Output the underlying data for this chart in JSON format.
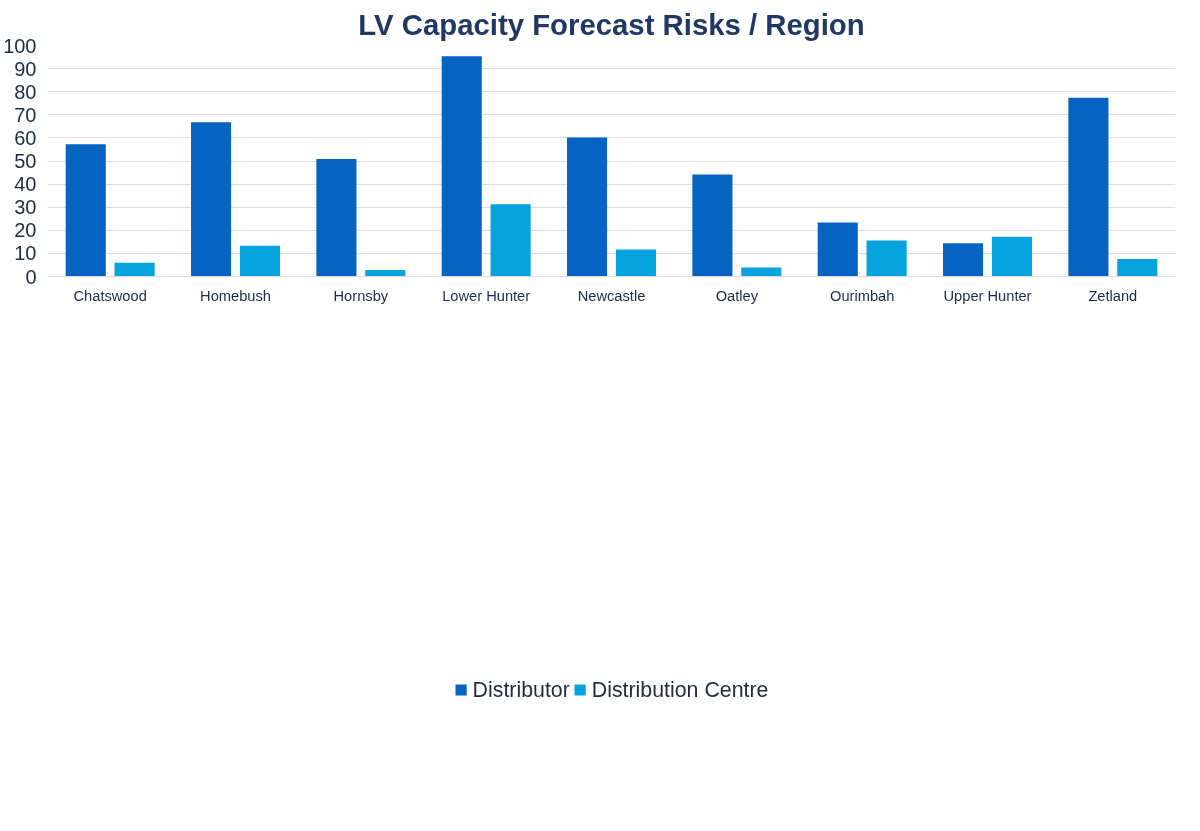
{
  "chart_data": {
    "type": "bar",
    "title": "LV Capacity Forecast Risks / Region",
    "categories": [
      "Chatswood",
      "Homebush",
      "Hornsby",
      "Lower Hunter",
      "Newcastle",
      "Oatley",
      "Ourimbah",
      "Upper Hunter",
      "Zetland"
    ],
    "series": [
      {
        "name": "Distributor",
        "color": "#0563c1",
        "values": [
          57.2,
          66.8,
          50.9,
          95.3,
          60.2,
          44.2,
          23.4,
          14.4,
          77.4
        ]
      },
      {
        "name": "Distribution Centre",
        "color": "#05a3e0",
        "values": [
          6.0,
          13.3,
          2.8,
          31.3,
          11.7,
          3.9,
          15.6,
          17.2,
          7.6
        ]
      }
    ],
    "ylim": [
      0,
      100
    ],
    "yticks": [
      0,
      10,
      20,
      30,
      40,
      50,
      60,
      70,
      80,
      90,
      100
    ],
    "grid": "y",
    "legend": "bottom"
  }
}
